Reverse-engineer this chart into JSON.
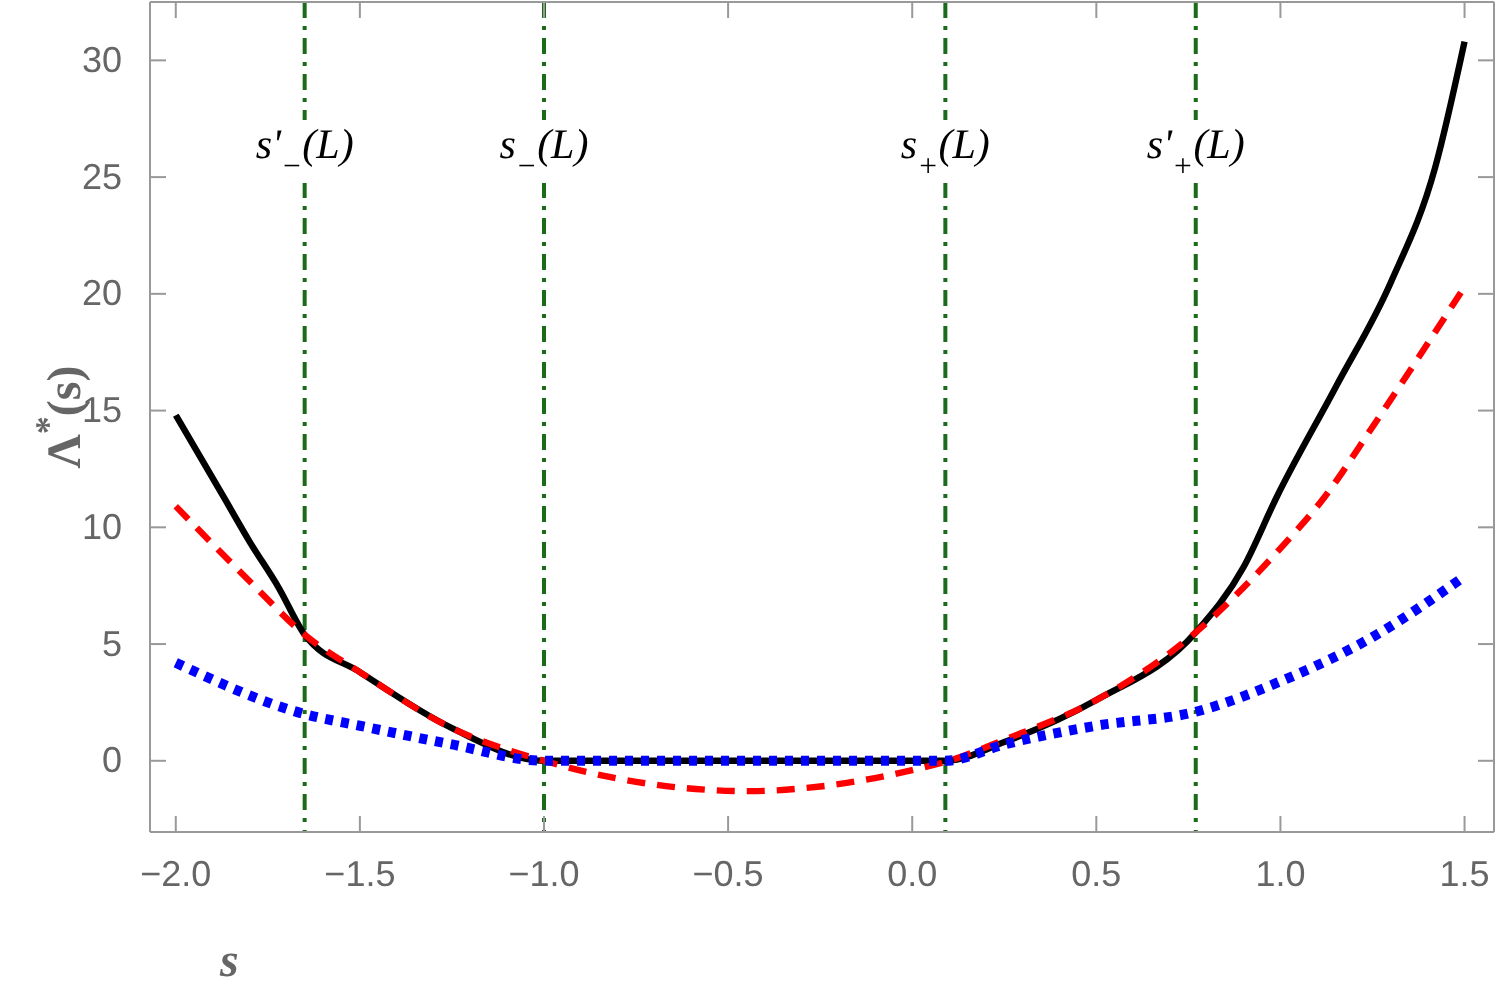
{
  "chart_data": {
    "type": "line",
    "xlabel": "s",
    "ylabel": "Λ$^{*}$(s)",
    "xlim": [
      -2.07,
      1.58
    ],
    "ylim": [
      -3.05,
      32.5
    ],
    "xticks": [
      {
        "value": -2,
        "label": "−2.0"
      },
      {
        "value": -1.5,
        "label": "−1.5"
      },
      {
        "value": -1,
        "label": "−1.0"
      },
      {
        "value": -0.5,
        "label": "−0.5"
      },
      {
        "value": 0,
        "label": "0.0"
      },
      {
        "value": 0.5,
        "label": "0.5"
      },
      {
        "value": 1,
        "label": "1.0"
      },
      {
        "value": 1.5,
        "label": "1.5"
      }
    ],
    "yticks": [
      0,
      5,
      10,
      15,
      20,
      25,
      30
    ],
    "grid": false,
    "series": [
      {
        "color": "#000000",
        "line_style": "solid",
        "x": [
          -2,
          -1.87,
          -1.8,
          -1.72,
          -1.65,
          -1.5,
          -1.25,
          -1,
          -0.5,
          0,
          0.09,
          0.25,
          0.5,
          0.77,
          0.9,
          0.99,
          1.15,
          1.3,
          1.42,
          1.5
        ],
        "values": [
          14.8,
          11.3,
          9.4,
          7.4,
          5.4,
          3.8,
          1.4,
          0,
          0,
          0,
          0,
          0.8,
          2.6,
          5.5,
          8.3,
          11.3,
          16.0,
          20.5,
          25.4,
          30.8
        ]
      },
      {
        "color": "#ff0000",
        "line_style": "dashed",
        "x": [
          -2,
          -1.8,
          -1.65,
          -1.5,
          -1.25,
          -1,
          -0.75,
          -0.44,
          -0.25,
          0,
          0.1,
          0.25,
          0.5,
          0.77,
          1,
          1.12,
          1.25,
          1.5
        ],
        "values": [
          10.9,
          7.7,
          5.4,
          3.8,
          1.4,
          0,
          -0.9,
          -1.3,
          -1.1,
          -0.4,
          0,
          0.9,
          2.6,
          5.5,
          9.1,
          11.3,
          14.3,
          20.3
        ]
      },
      {
        "color": "#0000ff",
        "line_style": "dotted",
        "x": [
          -2,
          -1.65,
          -1.5,
          -1.25,
          -1,
          -0.5,
          0,
          0.09,
          0.25,
          0.5,
          0.77,
          1,
          1.25,
          1.5
        ],
        "values": [
          4.2,
          2.0,
          1.5,
          0.7,
          0,
          0,
          0,
          0,
          0.7,
          1.5,
          2.1,
          3.4,
          5.3,
          7.9
        ]
      }
    ],
    "ref_lines": [
      {
        "axis": "x",
        "value": -1.65,
        "label": "s'$_{−}$(L)",
        "color": "#1a6b1a",
        "line_style": "dashdot"
      },
      {
        "axis": "x",
        "value": -1.0,
        "label": "s$_{−}$(L)",
        "color": "#1a6b1a",
        "line_style": "dashdot"
      },
      {
        "axis": "x",
        "value": 0.09,
        "label": "s$_{+}$(L)",
        "color": "#1a6b1a",
        "line_style": "dashdot"
      },
      {
        "axis": "x",
        "value": 0.77,
        "label": "s'$_{+}$(L)",
        "color": "#1a6b1a",
        "line_style": "dashdot"
      }
    ]
  }
}
